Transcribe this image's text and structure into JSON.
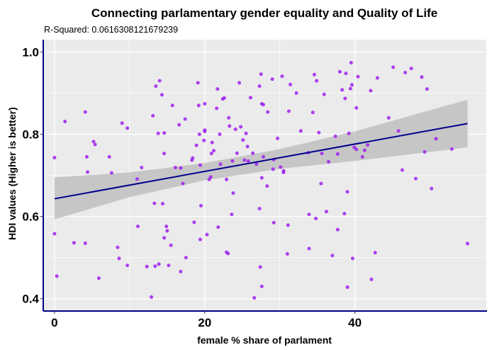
{
  "chart_data": {
    "type": "scatter",
    "title": "Connecting parlamentary gender equality and Quality of Life",
    "subtitle": "R-Squared:  0.0616308121679239",
    "xlabel": "female % share of parlament",
    "ylabel": "HDI values (Higher is better)",
    "xlim": [
      -1.5,
      57.5
    ],
    "ylim": [
      0.37,
      1.03
    ],
    "x_ticks": [
      0,
      20,
      40
    ],
    "x_tick_labels": [
      "0",
      "20",
      "40"
    ],
    "y_ticks": [
      0.4,
      0.6,
      0.8,
      1.0
    ],
    "y_tick_labels": [
      "0.4",
      "0.6",
      "0.8",
      "1.0"
    ],
    "grid": true,
    "legend": "none",
    "colors": {
      "panel_background": "#ebebeb",
      "grid": "#ffffff",
      "points": "#a020f0",
      "fit_line": "#00008b",
      "confidence_band": "#bfbfbf",
      "axis_line": "#00008b"
    },
    "points": [
      [
        0,
        0.743
      ],
      [
        0,
        0.558
      ],
      [
        0.3,
        0.455
      ],
      [
        1.4,
        0.831
      ],
      [
        2.6,
        0.536
      ],
      [
        4.1,
        0.854
      ],
      [
        4.3,
        0.745
      ],
      [
        4.4,
        0.708
      ],
      [
        4.1,
        0.535
      ],
      [
        5.2,
        0.782
      ],
      [
        5.4,
        0.775
      ],
      [
        5.9,
        0.45
      ],
      [
        7.3,
        0.745
      ],
      [
        7.6,
        0.706
      ],
      [
        8.4,
        0.525
      ],
      [
        8.6,
        0.498
      ],
      [
        9.0,
        0.827
      ],
      [
        9.7,
        0.815
      ],
      [
        9.7,
        0.481
      ],
      [
        11.0,
        0.691
      ],
      [
        11.1,
        0.576
      ],
      [
        11.6,
        0.719
      ],
      [
        12.3,
        0.478
      ],
      [
        12.9,
        0.404
      ],
      [
        13.1,
        0.845
      ],
      [
        13.3,
        0.632
      ],
      [
        13.4,
        0.479
      ],
      [
        13.5,
        0.917
      ],
      [
        13.8,
        0.802
      ],
      [
        13.9,
        0.484
      ],
      [
        14.0,
        0.93
      ],
      [
        14.3,
        0.896
      ],
      [
        14.4,
        0.631
      ],
      [
        14.6,
        0.803
      ],
      [
        14.6,
        0.753
      ],
      [
        14.6,
        0.548
      ],
      [
        14.9,
        0.576
      ],
      [
        15.0,
        0.565
      ],
      [
        15.2,
        0.481
      ],
      [
        15.5,
        0.53
      ],
      [
        15.7,
        0.87
      ],
      [
        16.1,
        0.719
      ],
      [
        16.6,
        0.823
      ],
      [
        16.8,
        0.718
      ],
      [
        16.8,
        0.466
      ],
      [
        17.1,
        0.68
      ],
      [
        17.4,
        0.837
      ],
      [
        17.5,
        0.5
      ],
      [
        18.3,
        0.737
      ],
      [
        18.4,
        0.742
      ],
      [
        18.6,
        0.586
      ],
      [
        18.9,
        0.773
      ],
      [
        19.1,
        0.925
      ],
      [
        19.2,
        0.87
      ],
      [
        19.3,
        0.8
      ],
      [
        19.4,
        0.725
      ],
      [
        19.4,
        0.544
      ],
      [
        19.5,
        0.626
      ],
      [
        19.9,
        0.785
      ],
      [
        20.0,
        0.807
      ],
      [
        20.0,
        0.81
      ],
      [
        20.0,
        0.874
      ],
      [
        20.3,
        0.556
      ],
      [
        20.6,
        0.69
      ],
      [
        20.8,
        0.696
      ],
      [
        20.9,
        0.753
      ],
      [
        21.0,
        0.78
      ],
      [
        21.2,
        0.76
      ],
      [
        21.6,
        0.863
      ],
      [
        21.7,
        0.91
      ],
      [
        21.8,
        0.574
      ],
      [
        22.0,
        0.8
      ],
      [
        22.1,
        0.727
      ],
      [
        22.4,
        0.886
      ],
      [
        22.6,
        0.888
      ],
      [
        22.9,
        0.69
      ],
      [
        22.9,
        0.513
      ],
      [
        23.1,
        0.51
      ],
      [
        23.2,
        0.84
      ],
      [
        23.3,
        0.82
      ],
      [
        23.6,
        0.605
      ],
      [
        23.7,
        0.735
      ],
      [
        23.8,
        0.657
      ],
      [
        24.1,
        0.812
      ],
      [
        24.3,
        0.754
      ],
      [
        24.6,
        0.925
      ],
      [
        24.8,
        0.818
      ],
      [
        25.1,
        0.786
      ],
      [
        25.3,
        0.737
      ],
      [
        25.5,
        0.802
      ],
      [
        25.7,
        0.77
      ],
      [
        25.8,
        0.735
      ],
      [
        26.1,
        0.889
      ],
      [
        26.4,
        0.754
      ],
      [
        26.6,
        0.402
      ],
      [
        26.9,
        0.727
      ],
      [
        27.3,
        0.917
      ],
      [
        27.3,
        0.619
      ],
      [
        27.5,
        0.946
      ],
      [
        27.6,
        0.694
      ],
      [
        27.8,
        0.745
      ],
      [
        27.4,
        0.477
      ],
      [
        27.6,
        0.43
      ],
      [
        27.6,
        0.874
      ],
      [
        27.8,
        0.872
      ],
      [
        28.3,
        0.674
      ],
      [
        28.4,
        0.854
      ],
      [
        29.0,
        0.934
      ],
      [
        29.1,
        0.715
      ],
      [
        29.2,
        0.738
      ],
      [
        29.2,
        0.585
      ],
      [
        29.7,
        0.79
      ],
      [
        30.1,
        0.72
      ],
      [
        30.3,
        0.941
      ],
      [
        30.5,
        0.711
      ],
      [
        30.5,
        0.707
      ],
      [
        31.0,
        0.509
      ],
      [
        31.1,
        0.579
      ],
      [
        31.2,
        0.856
      ],
      [
        31.4,
        0.921
      ],
      [
        32.2,
        0.9
      ],
      [
        32.8,
        0.808
      ],
      [
        33.8,
        0.755
      ],
      [
        33.9,
        0.522
      ],
      [
        33.9,
        0.605
      ],
      [
        34.4,
        0.853
      ],
      [
        34.6,
        0.945
      ],
      [
        34.9,
        0.93
      ],
      [
        34.8,
        0.595
      ],
      [
        35.2,
        0.804
      ],
      [
        35.5,
        0.68
      ],
      [
        35.6,
        0.753
      ],
      [
        35.9,
        0.897
      ],
      [
        36.2,
        0.612
      ],
      [
        36.5,
        0.733
      ],
      [
        37.0,
        0.505
      ],
      [
        37.4,
        0.795
      ],
      [
        37.7,
        0.568
      ],
      [
        37.7,
        0.752
      ],
      [
        38.0,
        0.952
      ],
      [
        38.3,
        0.908
      ],
      [
        38.6,
        0.607
      ],
      [
        38.7,
        0.887
      ],
      [
        38.8,
        0.948
      ],
      [
        39.0,
        0.428
      ],
      [
        39.0,
        0.66
      ],
      [
        39.2,
        0.802
      ],
      [
        39.4,
        0.911
      ],
      [
        39.5,
        0.974
      ],
      [
        39.6,
        0.92
      ],
      [
        39.7,
        0.498
      ],
      [
        39.9,
        0.768
      ],
      [
        40.2,
        0.763
      ],
      [
        40.2,
        0.864
      ],
      [
        40.4,
        0.94
      ],
      [
        41.0,
        0.745
      ],
      [
        41.3,
        0.761
      ],
      [
        41.7,
        0.774
      ],
      [
        42.1,
        0.906
      ],
      [
        42.2,
        0.447
      ],
      [
        42.7,
        0.512
      ],
      [
        43.0,
        0.937
      ],
      [
        44.5,
        0.84
      ],
      [
        45.1,
        0.963
      ],
      [
        45.8,
        0.808
      ],
      [
        46.3,
        0.713
      ],
      [
        46.7,
        0.95
      ],
      [
        47.5,
        0.96
      ],
      [
        48.1,
        0.692
      ],
      [
        48.9,
        0.939
      ],
      [
        49.3,
        0.757
      ],
      [
        49.6,
        0.91
      ],
      [
        50.2,
        0.668
      ],
      [
        50.8,
        0.789
      ],
      [
        52.9,
        0.764
      ],
      [
        55.0,
        0.534
      ]
    ],
    "fit_line": {
      "x": [
        0,
        55
      ],
      "y": [
        0.643,
        0.826
      ]
    },
    "confidence_band": {
      "x": [
        0,
        10,
        20,
        30,
        40,
        55
      ],
      "lower": [
        0.593,
        0.647,
        0.688,
        0.716,
        0.735,
        0.768
      ],
      "upper": [
        0.695,
        0.707,
        0.73,
        0.764,
        0.807,
        0.884
      ]
    }
  }
}
